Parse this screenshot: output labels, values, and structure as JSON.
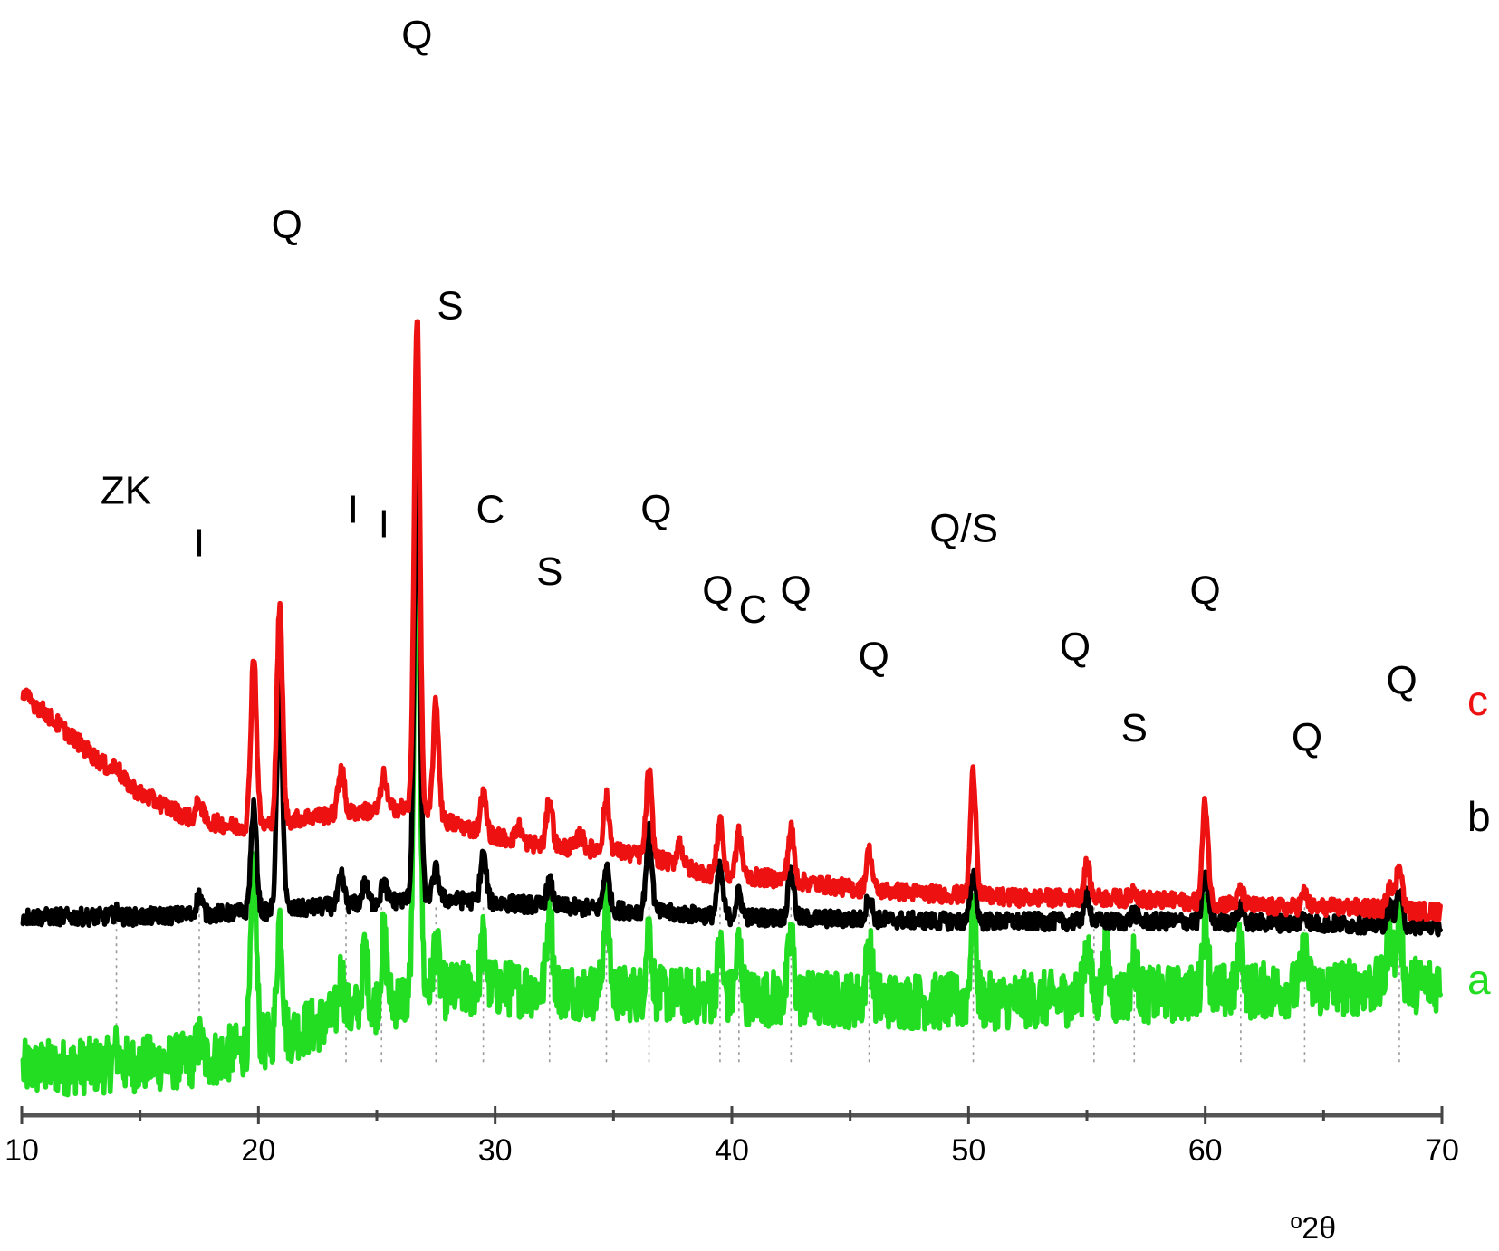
{
  "chart_data": {
    "type": "line",
    "title": "",
    "xlabel": "º2θ",
    "ylabel": "",
    "xlim": [
      10,
      70
    ],
    "x_ticks": [
      "10",
      "20",
      "30",
      "40",
      "50",
      "60",
      "70"
    ],
    "grid": false,
    "legend": "series labels at right end of each trace",
    "y_units": "relative intensity (arbitrary, stacked traces)",
    "series": [
      {
        "name": "a",
        "color": "#22dd22",
        "baseline": [
          [
            10,
            6
          ],
          [
            15,
            7
          ],
          [
            18,
            8
          ],
          [
            20,
            11
          ],
          [
            24,
            18
          ],
          [
            27,
            22
          ],
          [
            30,
            23
          ],
          [
            40,
            21
          ],
          [
            50,
            20
          ],
          [
            60,
            22
          ],
          [
            70,
            24
          ]
        ],
        "peaks": [
          [
            14,
            3
          ],
          [
            17.5,
            4
          ],
          [
            19.8,
            36
          ],
          [
            20.9,
            25
          ],
          [
            23.5,
            9
          ],
          [
            24.5,
            12
          ],
          [
            25.3,
            14
          ],
          [
            26.7,
            100
          ],
          [
            27.5,
            10
          ],
          [
            29.5,
            10
          ],
          [
            32.3,
            17
          ],
          [
            34.7,
            20
          ],
          [
            36.5,
            14
          ],
          [
            39.5,
            10
          ],
          [
            40.3,
            11
          ],
          [
            42.5,
            13
          ],
          [
            45.8,
            12
          ],
          [
            50.2,
            18
          ],
          [
            55,
            12
          ],
          [
            55.8,
            10
          ],
          [
            57,
            8
          ],
          [
            60,
            16
          ],
          [
            61.5,
            10
          ],
          [
            64.2,
            8
          ],
          [
            67.8,
            12
          ],
          [
            68.2,
            14
          ]
        ],
        "noise": 6
      },
      {
        "name": "b",
        "color": "#000000",
        "baseline": [
          [
            10,
            38
          ],
          [
            15,
            38
          ],
          [
            20,
            39
          ],
          [
            25,
            41
          ],
          [
            27,
            42
          ],
          [
            30,
            41
          ],
          [
            40,
            38
          ],
          [
            50,
            37
          ],
          [
            60,
            37
          ],
          [
            70,
            36
          ]
        ],
        "peaks": [
          [
            14,
            1
          ],
          [
            17.5,
            4
          ],
          [
            19.8,
            22
          ],
          [
            20.9,
            47
          ],
          [
            23.5,
            6
          ],
          [
            24.5,
            4
          ],
          [
            25.3,
            4
          ],
          [
            26.7,
            94
          ],
          [
            27.5,
            6
          ],
          [
            29.5,
            10
          ],
          [
            32.3,
            5
          ],
          [
            34.7,
            9
          ],
          [
            36.5,
            17
          ],
          [
            39.5,
            10
          ],
          [
            40.3,
            5
          ],
          [
            42.5,
            10
          ],
          [
            45.8,
            5
          ],
          [
            50.2,
            10
          ],
          [
            55,
            6
          ],
          [
            57,
            2
          ],
          [
            60,
            9
          ],
          [
            61.5,
            3
          ],
          [
            64.2,
            2
          ],
          [
            67.8,
            4
          ],
          [
            68.2,
            7
          ]
        ],
        "noise": 1.8
      },
      {
        "name": "c",
        "color": "#ee1111",
        "baseline": [
          [
            10,
            85
          ],
          [
            11,
            81
          ],
          [
            13,
            72
          ],
          [
            15,
            64
          ],
          [
            17,
            59
          ],
          [
            19,
            57
          ],
          [
            20,
            57
          ],
          [
            22,
            59
          ],
          [
            24,
            60
          ],
          [
            26,
            61
          ],
          [
            28,
            58
          ],
          [
            30,
            55
          ],
          [
            32,
            53
          ],
          [
            35,
            52
          ],
          [
            37,
            50
          ],
          [
            39,
            47
          ],
          [
            42,
            46
          ],
          [
            45,
            44
          ],
          [
            48,
            43
          ],
          [
            52,
            42
          ],
          [
            56,
            42
          ],
          [
            60,
            41
          ],
          [
            63,
            40
          ],
          [
            66,
            40
          ],
          [
            70,
            39
          ]
        ],
        "peaks": [
          [
            14,
            2
          ],
          [
            17.5,
            4
          ],
          [
            19.8,
            36
          ],
          [
            20.9,
            45
          ],
          [
            23.5,
            10
          ],
          [
            25.3,
            7
          ],
          [
            26.7,
            105
          ],
          [
            27.5,
            24
          ],
          [
            29.5,
            8
          ],
          [
            31,
            3
          ],
          [
            32.3,
            10
          ],
          [
            33.6,
            3
          ],
          [
            34.7,
            11
          ],
          [
            36.5,
            18
          ],
          [
            37.8,
            5
          ],
          [
            39.5,
            12
          ],
          [
            40.3,
            9
          ],
          [
            42.5,
            11
          ],
          [
            45.8,
            8
          ],
          [
            50.2,
            26
          ],
          [
            55,
            7
          ],
          [
            57,
            2
          ],
          [
            60,
            21
          ],
          [
            61.5,
            3
          ],
          [
            64.2,
            3
          ],
          [
            67.8,
            6
          ],
          [
            68.2,
            10
          ]
        ],
        "noise": 1.8
      }
    ],
    "peak_labels": [
      {
        "text": "ZK",
        "x": 14.4,
        "y": 125
      },
      {
        "text": "I",
        "x": 17.5,
        "y": 114
      },
      {
        "text": "Q",
        "x": 21.2,
        "y": 181
      },
      {
        "text": "I",
        "x": 24,
        "y": 121
      },
      {
        "text": "I",
        "x": 25.3,
        "y": 118
      },
      {
        "text": "Q",
        "x": 26.7,
        "y": 221
      },
      {
        "text": "S",
        "x": 28.1,
        "y": 164
      },
      {
        "text": "C",
        "x": 29.8,
        "y": 121
      },
      {
        "text": "S",
        "x": 32.3,
        "y": 108
      },
      {
        "text": "Q",
        "x": 36.8,
        "y": 121
      },
      {
        "text": "Q",
        "x": 39.4,
        "y": 104
      },
      {
        "text": "C",
        "x": 40.9,
        "y": 100
      },
      {
        "text": "Q",
        "x": 42.7,
        "y": 104
      },
      {
        "text": "Q/S",
        "x": 49.8,
        "y": 117
      },
      {
        "text": "Q",
        "x": 46,
        "y": 90
      },
      {
        "text": "Q",
        "x": 54.5,
        "y": 92
      },
      {
        "text": "S",
        "x": 57,
        "y": 75
      },
      {
        "text": "Q",
        "x": 60,
        "y": 104
      },
      {
        "text": "Q",
        "x": 64.3,
        "y": 73
      },
      {
        "text": "Q",
        "x": 68.3,
        "y": 85
      }
    ],
    "guide_lines_x": [
      14,
      17.5,
      23.7,
      25.2,
      27.5,
      29.5,
      32.3,
      34.7,
      36.5,
      39.5,
      40.3,
      42.5,
      45.8,
      50.2,
      55.3,
      57,
      61.5,
      64.2,
      68.2
    ],
    "y_range": [
      0,
      227
    ]
  }
}
